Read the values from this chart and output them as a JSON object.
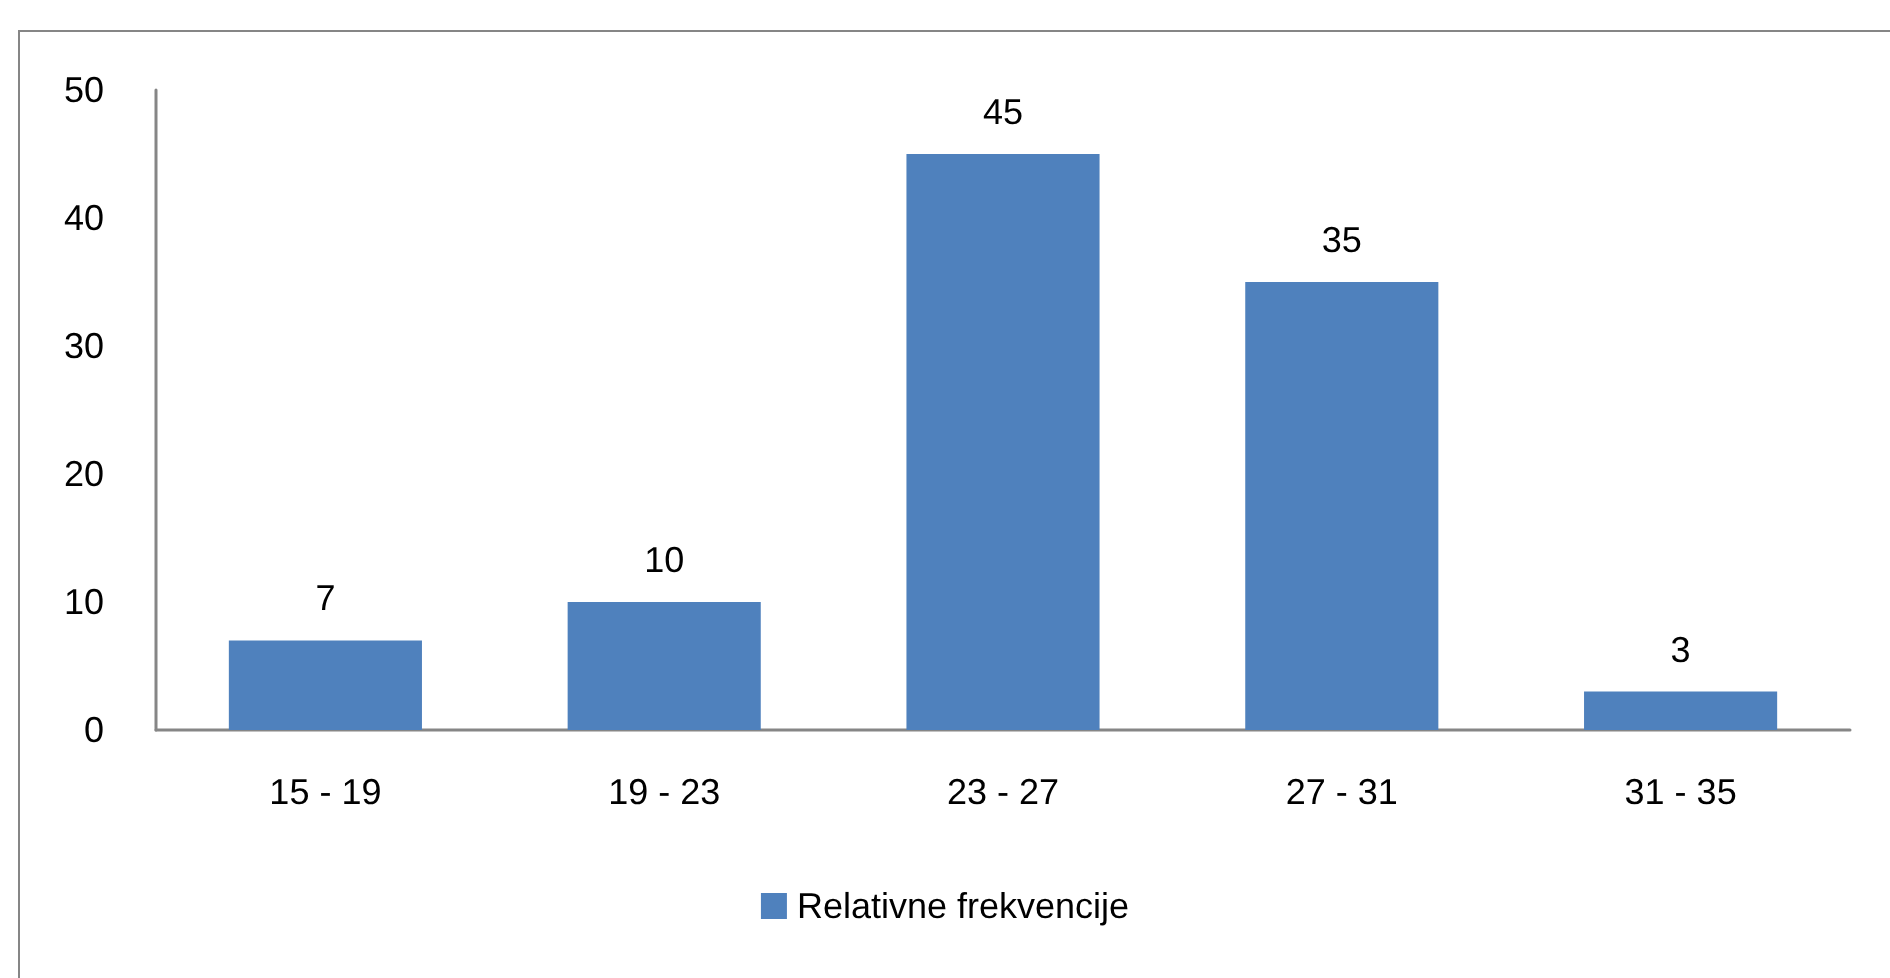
{
  "chart_data": {
    "type": "bar",
    "categories": [
      "15 - 19",
      "19 - 23",
      "23 - 27",
      "27 - 31",
      "31 - 35"
    ],
    "series": [
      {
        "name": "Relativne frekvencije",
        "color": "#4f81bd",
        "values": [
          7,
          10,
          45,
          35,
          3
        ]
      }
    ],
    "ylim": [
      0,
      50
    ],
    "yticks": [
      0,
      10,
      20,
      30,
      40,
      50
    ],
    "grid": false,
    "legend": "bottom",
    "data_labels": true
  }
}
